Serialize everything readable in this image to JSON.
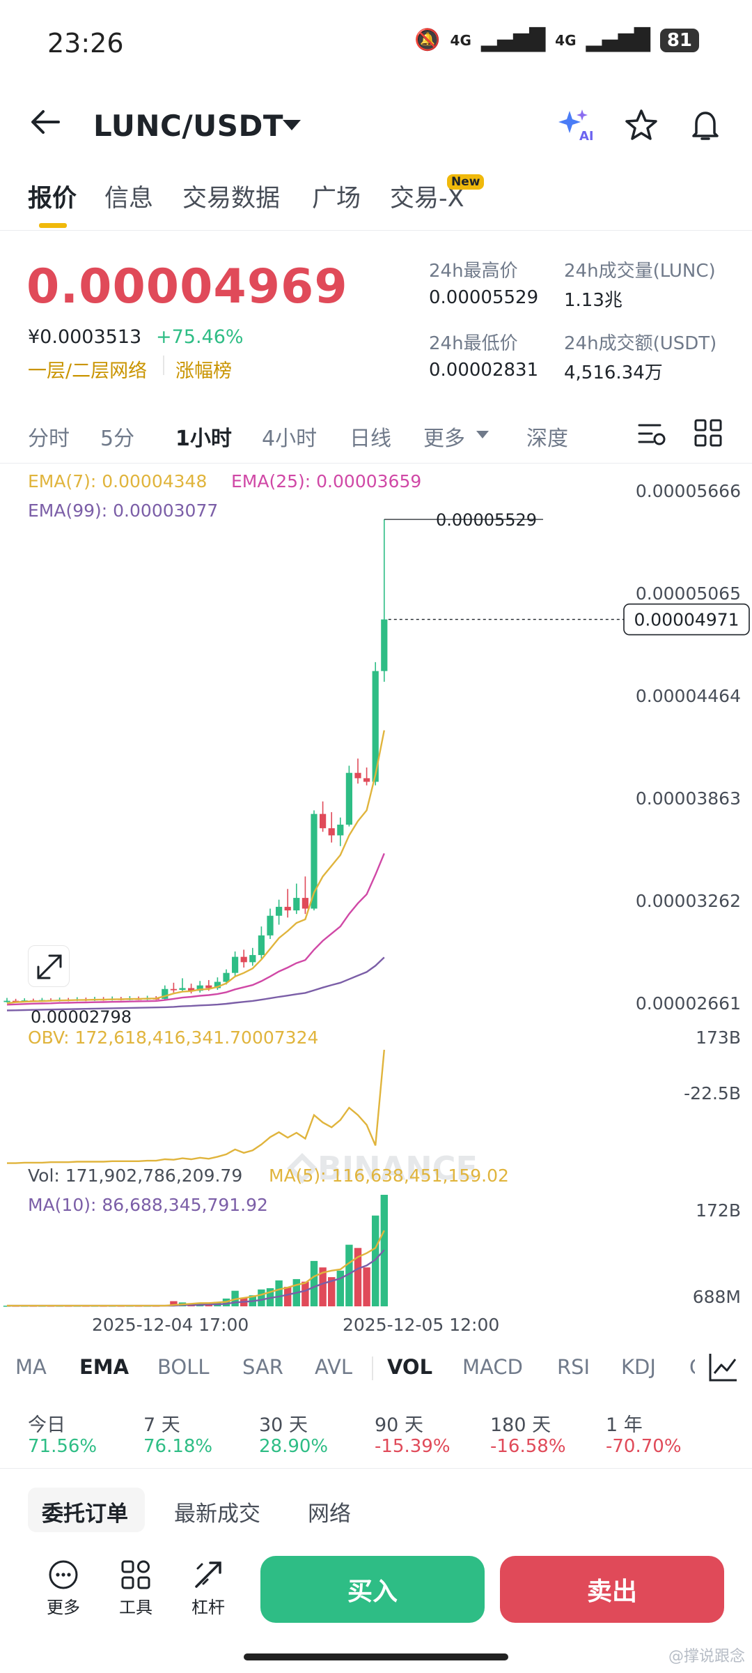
{
  "status_bar": {
    "time": "23:26",
    "network": "4G",
    "battery": "81"
  },
  "header": {
    "pair": "LUNC/USDT",
    "ai_label": "AI"
  },
  "main_tabs": [
    {
      "label": "报价"
    },
    {
      "label": "信息"
    },
    {
      "label": "交易数据"
    },
    {
      "label": "广场"
    },
    {
      "label": "交易-X"
    }
  ],
  "new_badge": "New",
  "price": {
    "last": "0.00004969",
    "cny": "¥0.0003513",
    "change": "+75.46%",
    "tags": [
      "一层/二层网络",
      "涨幅榜"
    ]
  },
  "stats": {
    "high_label": "24h最高价",
    "high_value": "0.00005529",
    "low_label": "24h最低价",
    "low_value": "0.00002831",
    "vol_label": "24h成交量(LUNC)",
    "vol_value": "1.13兆",
    "amount_label": "24h成交额(USDT)",
    "amount_value": "4,516.34万"
  },
  "intervals": [
    {
      "label": "分时"
    },
    {
      "label": "5分"
    },
    {
      "label": "1小时"
    },
    {
      "label": "4小时"
    },
    {
      "label": "日线"
    },
    {
      "label": "更多"
    },
    {
      "label": "深度"
    }
  ],
  "legends": {
    "ema7": "EMA(7): 0.00004348",
    "ema25": "EMA(25): 0.00003659",
    "ema99": "EMA(99): 0.00003077",
    "obv": "OBV: 172,618,416,341.70007324",
    "vol": "Vol: 171,902,786,209.79",
    "ma5": "MA(5): 116,638,451,159.02",
    "ma10": "MA(10): 86,688,345,791.92"
  },
  "price_axis": [
    "0.00005666",
    "0.00005065",
    "0.00004464",
    "0.00003863",
    "0.00003262",
    "0.00002661"
  ],
  "price_labels": {
    "high": "0.00005529",
    "low": "0.00002798",
    "current": "0.00004971"
  },
  "obv_axis": [
    "173B",
    "-22.5B"
  ],
  "vol_axis": [
    "172B",
    "688M"
  ],
  "time_axis": [
    "2025-12-04 17:00",
    "2025-12-05 12:00"
  ],
  "watermark": "BINANCE",
  "indicator_tabs": [
    {
      "label": "MA"
    },
    {
      "label": "EMA"
    },
    {
      "label": "BOLL"
    },
    {
      "label": "SAR"
    },
    {
      "label": "AVL"
    },
    {
      "label": "VOL"
    },
    {
      "label": "MACD"
    },
    {
      "label": "RSI"
    },
    {
      "label": "KDJ"
    },
    {
      "label": "C"
    }
  ],
  "performance": [
    {
      "label": "今日",
      "value": "71.56%",
      "color": "#2ebd85"
    },
    {
      "label": "7 天",
      "value": "76.18%",
      "color": "#2ebd85"
    },
    {
      "label": "30 天",
      "value": "28.90%",
      "color": "#2ebd85"
    },
    {
      "label": "90 天",
      "value": "-15.39%",
      "color": "#e04a59"
    },
    {
      "label": "180 天",
      "value": "-16.58%",
      "color": "#e04a59"
    },
    {
      "label": "1 年",
      "value": "-70.70%",
      "color": "#e04a59"
    }
  ],
  "order_tabs": [
    {
      "label": "委托订单"
    },
    {
      "label": "最新成交"
    },
    {
      "label": "网络"
    }
  ],
  "tools": [
    {
      "label": "更多"
    },
    {
      "label": "工具"
    },
    {
      "label": "杠杆"
    }
  ],
  "actions": {
    "buy": "买入",
    "sell": "卖出"
  },
  "source_watermark": "@撑说跟念",
  "colors": {
    "up": "#2ebd85",
    "down": "#e04a59",
    "accent": "#f0b90b",
    "ema7": "#e0b43c",
    "ema25": "#d048a6",
    "ema99": "#7b5ea7"
  },
  "chart_data": {
    "type": "candlestick",
    "price_range": [
      2.661e-05,
      5.666e-05
    ],
    "candles": [
      [
        2.83e-05,
        2.834e-05,
        2.85e-05,
        2.825e-05
      ],
      [
        2.834e-05,
        2.831e-05,
        2.845e-05,
        2.824e-05
      ],
      [
        2.831e-05,
        2.836e-05,
        2.848e-05,
        2.826e-05
      ],
      [
        2.836e-05,
        2.833e-05,
        2.846e-05,
        2.827e-05
      ],
      [
        2.833e-05,
        2.838e-05,
        2.85e-05,
        2.828e-05
      ],
      [
        2.838e-05,
        2.835e-05,
        2.848e-05,
        2.829e-05
      ],
      [
        2.835e-05,
        2.84e-05,
        2.852e-05,
        2.83e-05
      ],
      [
        2.84e-05,
        2.837e-05,
        2.85e-05,
        2.831e-05
      ],
      [
        2.837e-05,
        2.842e-05,
        2.854e-05,
        2.832e-05
      ],
      [
        2.842e-05,
        2.838e-05,
        2.852e-05,
        2.832e-05
      ],
      [
        2.838e-05,
        2.843e-05,
        2.856e-05,
        2.833e-05
      ],
      [
        2.843e-05,
        2.84e-05,
        2.855e-05,
        2.834e-05
      ],
      [
        2.84e-05,
        2.845e-05,
        2.858e-05,
        2.835e-05
      ],
      [
        2.845e-05,
        2.842e-05,
        2.856e-05,
        2.836e-05
      ],
      [
        2.842e-05,
        2.846e-05,
        2.86e-05,
        2.837e-05
      ],
      [
        2.846e-05,
        2.843e-05,
        2.858e-05,
        2.838e-05
      ],
      [
        2.843e-05,
        2.848e-05,
        2.862e-05,
        2.838e-05
      ],
      [
        2.848e-05,
        2.845e-05,
        2.86e-05,
        2.839e-05
      ],
      [
        2.845e-05,
        2.9e-05,
        2.92e-05,
        2.842e-05
      ],
      [
        2.9e-05,
        2.895e-05,
        2.935e-05,
        2.88e-05
      ],
      [
        2.895e-05,
        2.905e-05,
        2.96e-05,
        2.885e-05
      ],
      [
        2.905e-05,
        2.89e-05,
        2.93e-05,
        2.875e-05
      ],
      [
        2.89e-05,
        2.92e-05,
        2.945e-05,
        2.88e-05
      ],
      [
        2.92e-05,
        2.905e-05,
        2.95e-05,
        2.89e-05
      ],
      [
        2.905e-05,
        2.94e-05,
        2.965e-05,
        2.895e-05
      ],
      [
        2.94e-05,
        2.99e-05,
        3.01e-05,
        2.925e-05
      ],
      [
        2.99e-05,
        3.08e-05,
        3.11e-05,
        2.97e-05
      ],
      [
        3.08e-05,
        3.05e-05,
        3.12e-05,
        3.02e-05
      ],
      [
        3.05e-05,
        3.09e-05,
        3.13e-05,
        3.03e-05
      ],
      [
        3.09e-05,
        3.2e-05,
        3.25e-05,
        3.07e-05
      ],
      [
        3.2e-05,
        3.31e-05,
        3.35e-05,
        3.18e-05
      ],
      [
        3.31e-05,
        3.36e-05,
        3.4e-05,
        3.26e-05
      ],
      [
        3.36e-05,
        3.34e-05,
        3.46e-05,
        3.3e-05
      ],
      [
        3.34e-05,
        3.41e-05,
        3.49e-05,
        3.32e-05
      ],
      [
        3.41e-05,
        3.35e-05,
        3.53e-05,
        3.32e-05
      ],
      [
        3.35e-05,
        3.88e-05,
        3.9e-05,
        3.34e-05
      ],
      [
        3.88e-05,
        3.8e-05,
        3.95e-05,
        3.78e-05
      ],
      [
        3.8e-05,
        3.76e-05,
        3.89e-05,
        3.72e-05
      ],
      [
        3.76e-05,
        3.82e-05,
        3.86e-05,
        3.7e-05
      ],
      [
        3.82e-05,
        4.11e-05,
        4.15e-05,
        3.81e-05
      ],
      [
        4.11e-05,
        4.08e-05,
        4.19e-05,
        4.05e-05
      ],
      [
        4.08e-05,
        4.06e-05,
        4.14e-05,
        4.04e-05
      ],
      [
        4.06e-05,
        4.68e-05,
        4.73e-05,
        4.04e-05
      ],
      [
        4.68e-05,
        4.969e-05,
        5.529e-05,
        4.62e-05
      ]
    ],
    "ema7": [
      2.82e-05,
      2.826e-05,
      2.829e-05,
      2.831e-05,
      2.832e-05,
      2.834e-05,
      2.836e-05,
      2.837e-05,
      2.838e-05,
      2.839e-05,
      2.84e-05,
      2.841e-05,
      2.842e-05,
      2.843e-05,
      2.844e-05,
      2.845e-05,
      2.846e-05,
      2.847e-05,
      2.86e-05,
      2.875e-05,
      2.885e-05,
      2.888e-05,
      2.897e-05,
      2.9e-05,
      2.912e-05,
      2.932e-05,
      2.97e-05,
      2.99e-05,
      3.015e-05,
      3.065e-05,
      3.125e-05,
      3.185e-05,
      3.225e-05,
      3.27e-05,
      3.29e-05,
      3.44e-05,
      3.53e-05,
      3.59e-05,
      3.65e-05,
      3.76e-05,
      3.84e-05,
      3.9e-05,
      4.1e-05,
      4.348e-05
    ],
    "ema25": [
      2.812e-05,
      2.814e-05,
      2.816e-05,
      2.818e-05,
      2.819e-05,
      2.82e-05,
      2.822e-05,
      2.823e-05,
      2.824e-05,
      2.825e-05,
      2.826e-05,
      2.827e-05,
      2.828e-05,
      2.829e-05,
      2.83e-05,
      2.831e-05,
      2.832e-05,
      2.833e-05,
      2.838e-05,
      2.845e-05,
      2.852e-05,
      2.856e-05,
      2.862e-05,
      2.866e-05,
      2.872e-05,
      2.882e-05,
      2.898e-05,
      2.91e-05,
      2.922e-05,
      2.944e-05,
      2.97e-05,
      2.998e-05,
      3.02e-05,
      3.045e-05,
      3.062e-05,
      3.12e-05,
      3.17e-05,
      3.21e-05,
      3.25e-05,
      3.32e-05,
      3.38e-05,
      3.43e-05,
      3.54e-05,
      3.659e-05
    ],
    "ema99": [
      2.78e-05,
      2.781e-05,
      2.782e-05,
      2.783e-05,
      2.784e-05,
      2.785e-05,
      2.786e-05,
      2.787e-05,
      2.788e-05,
      2.789e-05,
      2.79e-05,
      2.791e-05,
      2.792e-05,
      2.793e-05,
      2.794e-05,
      2.795e-05,
      2.796e-05,
      2.797e-05,
      2.798e-05,
      2.8e-05,
      2.803e-05,
      2.805e-05,
      2.808e-05,
      2.81e-05,
      2.813e-05,
      2.817e-05,
      2.823e-05,
      2.828e-05,
      2.833e-05,
      2.84e-05,
      2.848e-05,
      2.856e-05,
      2.863e-05,
      2.871e-05,
      2.878e-05,
      2.893e-05,
      2.908e-05,
      2.922e-05,
      2.935e-05,
      2.955e-05,
      2.975e-05,
      2.995e-05,
      3.03e-05,
      3.077e-05
    ],
    "obv_range": [
      -60,
      173
    ],
    "obv": [
      -58,
      -58,
      -57,
      -57,
      -57,
      -56,
      -56,
      -56,
      -55,
      -55,
      -55,
      -55,
      -54,
      -54,
      -54,
      -54,
      -53,
      -53,
      -50,
      -51,
      -48,
      -50,
      -47,
      -49,
      -45,
      -40,
      -30,
      -37,
      -32,
      -20,
      -5,
      5,
      -6,
      4,
      -8,
      40,
      25,
      15,
      30,
      55,
      40,
      20,
      -22,
      173
    ],
    "vol_range": [
      0,
      172
    ],
    "volume": [
      1,
      1,
      1,
      1,
      1,
      1,
      1,
      1,
      1,
      1,
      1,
      1,
      1,
      1,
      1,
      1,
      1,
      1,
      2,
      8,
      6,
      4,
      5,
      6,
      7,
      12,
      24,
      13,
      17,
      26,
      28,
      40,
      30,
      42,
      38,
      70,
      60,
      45,
      55,
      95,
      90,
      60,
      140,
      172
    ],
    "ma5": [
      1,
      1,
      1,
      1,
      1,
      1,
      1,
      1,
      1,
      1,
      1,
      1,
      1,
      1,
      1,
      1,
      1,
      1,
      1,
      2,
      3,
      4,
      5,
      5,
      6,
      7,
      11,
      13,
      15,
      18,
      22,
      26,
      29,
      33,
      36,
      46,
      52,
      55,
      57,
      67,
      76,
      82,
      90,
      117
    ],
    "ma10": [
      1,
      1,
      1,
      1,
      1,
      1,
      1,
      1,
      1,
      1,
      1,
      1,
      1,
      1,
      1,
      1,
      1,
      1,
      1,
      1,
      2,
      2,
      2,
      3,
      3,
      4,
      6,
      7,
      8,
      10,
      13,
      15,
      18,
      21,
      24,
      30,
      35,
      39,
      43,
      50,
      58,
      63,
      72,
      87
    ]
  }
}
